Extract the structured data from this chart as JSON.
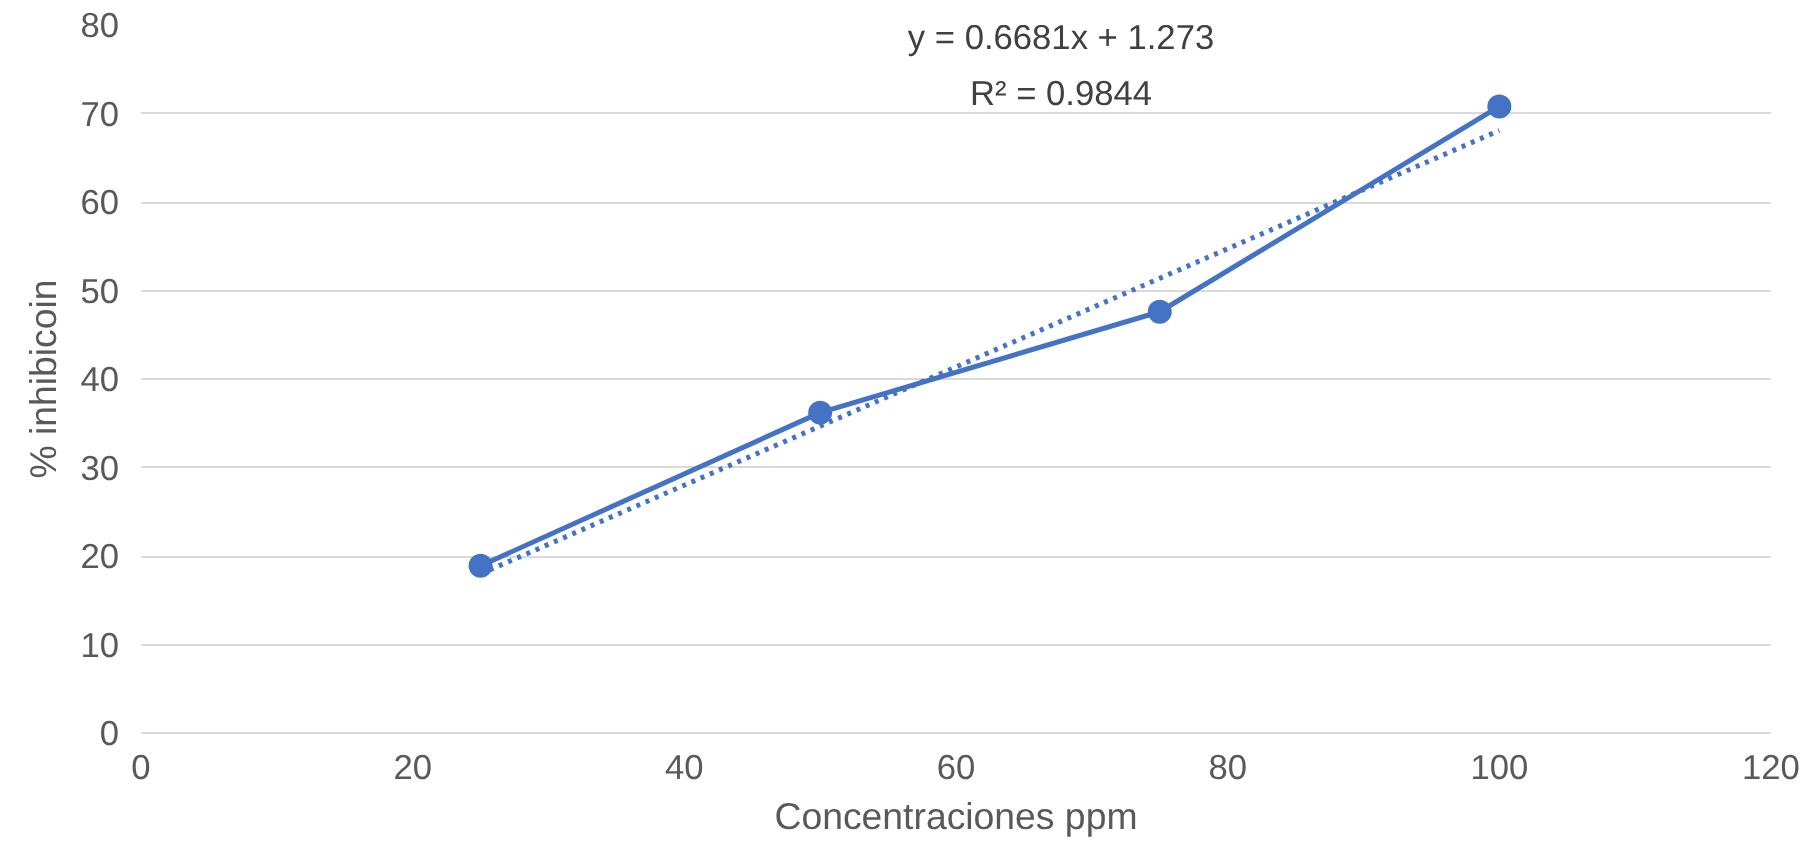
{
  "chart_data": {
    "type": "line",
    "xlabel": "Concentraciones ppm",
    "ylabel": "% inhibicoin",
    "x": [
      25,
      50,
      75,
      100
    ],
    "series": [
      {
        "color": "#4472c4",
        "values": [
          18.9,
          36.2,
          47.6,
          70.8
        ],
        "marker": "circle",
        "line_style": "solid"
      },
      {
        "type": "line",
        "x": [
          25,
          100
        ],
        "color": "#4472c4",
        "values": [
          17.98,
          68.08
        ],
        "marker": "none",
        "line_style": "dotted"
      }
    ],
    "annotations": [
      "y = 0.6681x + 1.273",
      "R² = 0.9844"
    ],
    "xlim": [
      0,
      120
    ],
    "xticks": [
      0,
      20,
      40,
      60,
      80,
      100,
      120
    ],
    "ylim": [
      0,
      80
    ],
    "yticks": [
      0,
      10,
      20,
      30,
      40,
      50,
      60,
      70,
      80
    ],
    "grid": "y"
  }
}
